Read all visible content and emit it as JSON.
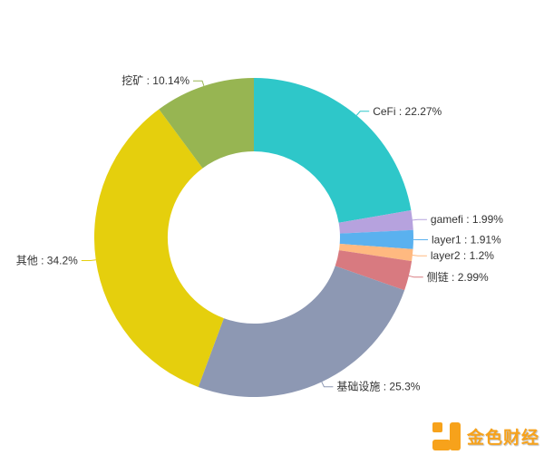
{
  "chart_data": {
    "type": "pie",
    "subtype": "donut",
    "title": "",
    "label_format": "{name} : {value}%",
    "background": "#ffffff",
    "label_color": "#333333",
    "start_angle_deg": 90,
    "clockwise": true,
    "center": [
      280,
      262
    ],
    "outer_radius": 176,
    "inner_radius": 95,
    "legend_position": "none",
    "grid": false,
    "items": [
      {
        "name": "CeFi",
        "value": 22.27,
        "color": "#2ec7c9"
      },
      {
        "name": "gamefi",
        "value": 1.99,
        "color": "#b6a2de"
      },
      {
        "name": "layer1",
        "value": 1.91,
        "color": "#5ab1ef"
      },
      {
        "name": "layer2",
        "value": 1.2,
        "color": "#ffb980"
      },
      {
        "name": "侧链",
        "value": 2.99,
        "color": "#d87a80"
      },
      {
        "name": "基础设施",
        "value": 25.3,
        "color": "#8d98b3"
      },
      {
        "name": "其他",
        "value": 34.2,
        "color": "#e5cf0d"
      },
      {
        "name": "挖矿",
        "value": 10.14,
        "color": "#97b552"
      }
    ]
  },
  "logo": {
    "text": "金色财经",
    "color": "#f7a21b"
  }
}
